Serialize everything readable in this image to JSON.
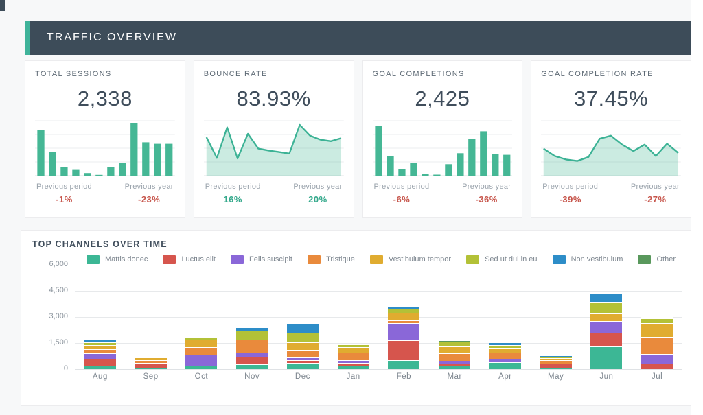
{
  "header": {
    "title": "TRAFFIC OVERVIEW"
  },
  "colors": {
    "accent": "#3FB39A",
    "header_bg": "#3D4C59",
    "positive": "#35A98C",
    "negative": "#C7564C",
    "mini_bar": "#45B795",
    "mini_line": "#3CB295",
    "mini_fill": "rgba(69,183,149,0.28)"
  },
  "kpis": [
    {
      "label": "TOTAL SESSIONS",
      "value": "2,338",
      "chart": "bar",
      "points": [
        0.87,
        0.45,
        0.17,
        0.11,
        0.05,
        0.01,
        0.17,
        0.25,
        1.0,
        0.64,
        0.61,
        0.61
      ],
      "comparisons": [
        {
          "label": "Previous period",
          "value": "-1%",
          "sentiment": "negative"
        },
        {
          "label": "Previous year",
          "value": "-23%",
          "sentiment": "negative"
        }
      ]
    },
    {
      "label": "BOUNCE RATE",
      "value": "83.93%",
      "chart": "area",
      "points": [
        0.75,
        0.33,
        0.95,
        0.32,
        0.82,
        0.52,
        0.48,
        0.45,
        0.42,
        1.0,
        0.78,
        0.7,
        0.67,
        0.73
      ],
      "comparisons": [
        {
          "label": "Previous period",
          "value": "16%",
          "sentiment": "positive"
        },
        {
          "label": "Previous year",
          "value": "20%",
          "sentiment": "positive"
        }
      ]
    },
    {
      "label": "GOAL COMPLETIONS",
      "value": "2,425",
      "chart": "bar",
      "points": [
        0.95,
        0.38,
        0.12,
        0.25,
        0.04,
        0.02,
        0.22,
        0.43,
        0.7,
        0.85,
        0.42,
        0.4
      ],
      "comparisons": [
        {
          "label": "Previous period",
          "value": "-6%",
          "sentiment": "negative"
        },
        {
          "label": "Previous year",
          "value": "-36%",
          "sentiment": "negative"
        }
      ]
    },
    {
      "label": "GOAL COMPLETION RATE",
      "value": "37.45%",
      "chart": "area",
      "points": [
        0.52,
        0.37,
        0.3,
        0.27,
        0.35,
        0.72,
        0.78,
        0.6,
        0.47,
        0.6,
        0.37,
        0.62,
        0.43
      ],
      "comparisons": [
        {
          "label": "Previous period",
          "value": "-39%",
          "sentiment": "negative"
        },
        {
          "label": "Previous year",
          "value": "-27%",
          "sentiment": "negative"
        }
      ]
    }
  ],
  "chart_data": {
    "type": "bar",
    "stacked": true,
    "title": "TOP CHANNELS OVER TIME",
    "categories": [
      "Aug",
      "Sep",
      "Oct",
      "Nov",
      "Dec",
      "Jan",
      "Feb",
      "Mar",
      "Apr",
      "May",
      "Jun",
      "Jul"
    ],
    "ylim": [
      0,
      6000
    ],
    "ytick_labels": [
      "6,000",
      "4,500",
      "3,000",
      "1,500",
      "0"
    ],
    "grid": true,
    "legend_position": "top",
    "series": [
      {
        "name": "Mattis donec",
        "color": "#3CB795",
        "values": [
          200,
          100,
          200,
          290,
          350,
          200,
          500,
          200,
          400,
          80,
          1300,
          0
        ]
      },
      {
        "name": "Luctus elit",
        "color": "#D6554D",
        "values": [
          400,
          200,
          0,
          440,
          160,
          170,
          1150,
          130,
          0,
          250,
          790,
          300
        ]
      },
      {
        "name": "Felis suscipit",
        "color": "#8A67D8",
        "values": [
          320,
          60,
          620,
          230,
          160,
          130,
          1000,
          160,
          200,
          0,
          660,
          590
        ]
      },
      {
        "name": "Tristique",
        "color": "#E98A3C",
        "values": [
          210,
          150,
          430,
          730,
          430,
          460,
          160,
          420,
          330,
          200,
          0,
          920
        ]
      },
      {
        "name": "Vestibulum tempor",
        "color": "#E0AC30",
        "values": [
          270,
          150,
          430,
          0,
          430,
          290,
          430,
          380,
          265,
          120,
          460,
          830
        ]
      },
      {
        "name": "Sed ut dui in eu",
        "color": "#B3C137",
        "values": [
          150,
          0,
          130,
          525,
          550,
          170,
          230,
          300,
          200,
          60,
          660,
          270
        ]
      },
      {
        "name": "Non vestibulum",
        "color": "#2D8DC8",
        "values": [
          150,
          90,
          90,
          200,
          570,
          0,
          140,
          0,
          145,
          90,
          520,
          0
        ]
      },
      {
        "name": "Other",
        "color": "#59985C",
        "values": [
          0,
          0,
          0,
          0,
          0,
          40,
          0,
          60,
          0,
          0,
          0,
          80
        ]
      }
    ]
  }
}
